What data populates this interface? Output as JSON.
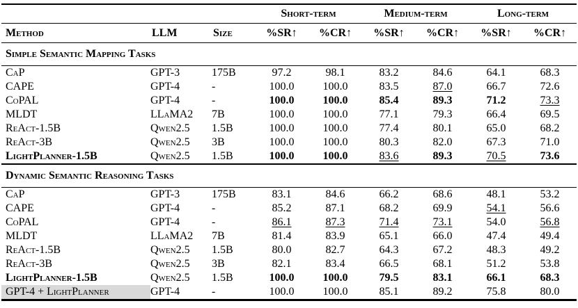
{
  "table": {
    "columns": [
      "Method",
      "LLM",
      "Size"
    ],
    "group_headers": [
      "Short-term",
      "Medium-term",
      "Long-term"
    ],
    "metric_headers": [
      "%SR↑",
      "%CR↑",
      "%SR↑",
      "%CR↑",
      "%SR↑",
      "%CR↑"
    ],
    "highlight_color": "#d9d9d9",
    "sections": [
      {
        "title": "Simple Semantic Mapping Tasks",
        "rows": [
          {
            "method": "CaP",
            "llm": "GPT-3",
            "size": "175B",
            "values": [
              {
                "v": "97.2"
              },
              {
                "v": "98.1"
              },
              {
                "v": "83.2"
              },
              {
                "v": "84.6"
              },
              {
                "v": "64.1"
              },
              {
                "v": "68.3"
              }
            ]
          },
          {
            "method": "CAPE",
            "llm": "GPT-4",
            "size": "-",
            "values": [
              {
                "v": "100.0"
              },
              {
                "v": "100.0"
              },
              {
                "v": "83.5"
              },
              {
                "v": "87.0",
                "u": true
              },
              {
                "v": "66.7"
              },
              {
                "v": "72.6"
              }
            ]
          },
          {
            "method": "CoPAL",
            "llm": "GPT-4",
            "size": "-",
            "values": [
              {
                "v": "100.0",
                "b": true
              },
              {
                "v": "100.0",
                "b": true
              },
              {
                "v": "85.4",
                "b": true
              },
              {
                "v": "89.3",
                "b": true
              },
              {
                "v": "71.2",
                "b": true
              },
              {
                "v": "73.3",
                "u": true
              }
            ]
          },
          {
            "method": "MLDT",
            "llm": "LLaMA2",
            "size": "7B",
            "values": [
              {
                "v": "100.0"
              },
              {
                "v": "100.0"
              },
              {
                "v": "77.1"
              },
              {
                "v": "79.3"
              },
              {
                "v": "66.4"
              },
              {
                "v": "69.5"
              }
            ]
          },
          {
            "method": "ReAct-1.5B",
            "llm": "Qwen2.5",
            "size": "1.5B",
            "values": [
              {
                "v": "100.0"
              },
              {
                "v": "100.0"
              },
              {
                "v": "77.4"
              },
              {
                "v": "80.1"
              },
              {
                "v": "65.0"
              },
              {
                "v": "68.2"
              }
            ]
          },
          {
            "method": "ReAct-3B",
            "llm": "Qwen2.5",
            "size": "3B",
            "values": [
              {
                "v": "100.0"
              },
              {
                "v": "100.0"
              },
              {
                "v": "80.3"
              },
              {
                "v": "82.0"
              },
              {
                "v": "67.3"
              },
              {
                "v": "71.0"
              }
            ]
          },
          {
            "method": "LightPlanner-1.5B",
            "bold_method": true,
            "llm": "Qwen2.5",
            "size": "1.5B",
            "values": [
              {
                "v": "100.0",
                "b": true
              },
              {
                "v": "100.0",
                "b": true
              },
              {
                "v": "83.6",
                "u": true
              },
              {
                "v": "89.3",
                "b": true
              },
              {
                "v": "70.5",
                "u": true
              },
              {
                "v": "73.6",
                "b": true
              }
            ]
          }
        ]
      },
      {
        "title": "Dynamic Semantic Reasoning Tasks",
        "rows": [
          {
            "method": "CaP",
            "llm": "GPT-3",
            "size": "175B",
            "values": [
              {
                "v": "83.1"
              },
              {
                "v": "84.6"
              },
              {
                "v": "66.2"
              },
              {
                "v": "68.6"
              },
              {
                "v": "48.1"
              },
              {
                "v": "53.2"
              }
            ]
          },
          {
            "method": "CAPE",
            "llm": "GPT-4",
            "size": "-",
            "values": [
              {
                "v": "85.2"
              },
              {
                "v": "87.1"
              },
              {
                "v": "68.2"
              },
              {
                "v": "69.9"
              },
              {
                "v": "54.1",
                "u": true
              },
              {
                "v": "56.6"
              }
            ]
          },
          {
            "method": "CoPAL",
            "llm": "GPT-4",
            "size": "-",
            "values": [
              {
                "v": "86.1",
                "u": true
              },
              {
                "v": "87.3",
                "u": true
              },
              {
                "v": "71.4",
                "u": true
              },
              {
                "v": "73.1",
                "u": true
              },
              {
                "v": "54.0"
              },
              {
                "v": "56.8",
                "u": true
              }
            ]
          },
          {
            "method": "MLDT",
            "llm": "LLaMA2",
            "size": "7B",
            "values": [
              {
                "v": "81.4"
              },
              {
                "v": "83.9"
              },
              {
                "v": "65.1"
              },
              {
                "v": "66.0"
              },
              {
                "v": "47.4"
              },
              {
                "v": "49.4"
              }
            ]
          },
          {
            "method": "ReAct-1.5B",
            "llm": "Qwen2.5",
            "size": "1.5B",
            "values": [
              {
                "v": "80.0"
              },
              {
                "v": "82.7"
              },
              {
                "v": "64.3"
              },
              {
                "v": "67.2"
              },
              {
                "v": "48.3"
              },
              {
                "v": "49.2"
              }
            ]
          },
          {
            "method": "ReAct-3B",
            "llm": "Qwen2.5",
            "size": "3B",
            "values": [
              {
                "v": "82.1"
              },
              {
                "v": "83.4"
              },
              {
                "v": "66.5"
              },
              {
                "v": "68.1"
              },
              {
                "v": "51.2"
              },
              {
                "v": "53.8"
              }
            ]
          },
          {
            "method": "LightPlanner-1.5B",
            "bold_method": true,
            "llm": "Qwen2.5",
            "size": "1.5B",
            "values": [
              {
                "v": "100.0",
                "b": true
              },
              {
                "v": "100.0",
                "b": true
              },
              {
                "v": "79.5",
                "b": true
              },
              {
                "v": "83.1",
                "b": true
              },
              {
                "v": "66.1",
                "b": true
              },
              {
                "v": "68.3",
                "b": true
              }
            ]
          },
          {
            "method": "GPT-4 + LightPlanner",
            "highlight": true,
            "llm": "GPT-4",
            "size": "-",
            "values": [
              {
                "v": "100.0"
              },
              {
                "v": "100.0"
              },
              {
                "v": "85.1"
              },
              {
                "v": "89.2"
              },
              {
                "v": "75.8"
              },
              {
                "v": "80.0"
              }
            ]
          }
        ]
      }
    ]
  }
}
